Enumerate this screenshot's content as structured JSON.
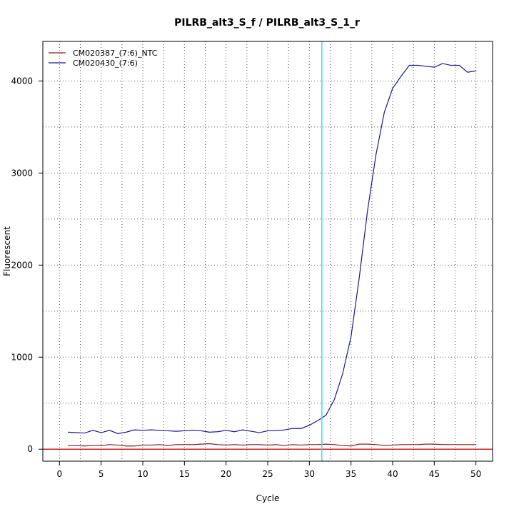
{
  "chart_data": {
    "type": "line",
    "title": "PILRB_alt3_S_f / PILRB_alt3_S_1_r",
    "xlabel": "Cycle",
    "ylabel": "Fluorescent",
    "xlim": [
      -2,
      52
    ],
    "ylim": [
      -130,
      4430
    ],
    "xticks": [
      0,
      5,
      10,
      15,
      20,
      25,
      30,
      35,
      40,
      45,
      50
    ],
    "yticks": [
      0,
      1000,
      2000,
      3000,
      4000
    ],
    "grid": true,
    "legend_position": "top-left",
    "threshold_x": 31.5,
    "threshold_color": "#40e0e8",
    "baseline_y": 0,
    "baseline_color": "#cc2222",
    "x": [
      1,
      2,
      3,
      4,
      5,
      6,
      7,
      8,
      9,
      10,
      11,
      12,
      13,
      14,
      15,
      16,
      17,
      18,
      19,
      20,
      21,
      22,
      23,
      24,
      25,
      26,
      27,
      28,
      29,
      30,
      31,
      32,
      33,
      34,
      35,
      36,
      37,
      38,
      39,
      40,
      41,
      42,
      43,
      44,
      45,
      46,
      47,
      48,
      49,
      50
    ],
    "series": [
      {
        "name": "CM020387_(7:6)_NTC",
        "color": "#8b1a1a",
        "values": [
          40,
          40,
          35,
          40,
          40,
          50,
          45,
          35,
          35,
          45,
          45,
          50,
          40,
          50,
          50,
          50,
          55,
          60,
          50,
          45,
          50,
          45,
          50,
          50,
          45,
          50,
          40,
          50,
          45,
          50,
          50,
          55,
          50,
          40,
          35,
          55,
          55,
          50,
          40,
          45,
          50,
          50,
          50,
          55,
          55,
          50,
          50,
          50,
          50,
          50
        ]
      },
      {
        "name": "CM020430_(7:6)",
        "color": "#1a1a8b",
        "values": [
          185,
          180,
          175,
          205,
          180,
          205,
          170,
          185,
          210,
          205,
          210,
          205,
          200,
          195,
          200,
          205,
          200,
          185,
          190,
          205,
          190,
          210,
          195,
          180,
          200,
          200,
          210,
          225,
          225,
          260,
          310,
          370,
          540,
          820,
          1220,
          1870,
          2600,
          3200,
          3660,
          3920,
          4050,
          4170,
          4170,
          4160,
          4150,
          4190,
          4170,
          4170,
          4095,
          4110
        ]
      }
    ]
  }
}
